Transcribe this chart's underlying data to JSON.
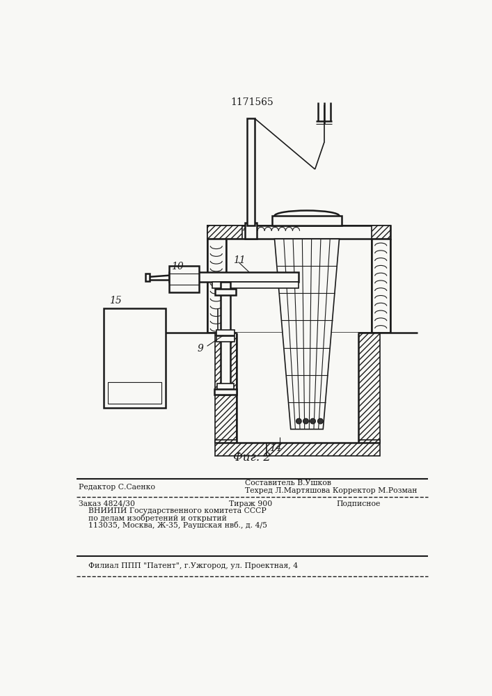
{
  "patent_number": "1171565",
  "fig_label": "Фиг. 2",
  "background_color": "#f8f8f5",
  "line_color": "#1a1a1a",
  "footer": {
    "editor_label": "Редактор С.Саенко",
    "composer_line1": "Составитель В.Ушков",
    "composer_line2": "Техред Л.Мартяшова Корректор М.Розман",
    "order": "Заказ 4824/30",
    "tirazh": "Тираж 900",
    "podpisnoe": "Подписное",
    "vniip1": "ВНИИПИ Государственного комитета СССР",
    "vniip2": "по делам изобретений и открытий",
    "vniip3": "113035, Москва, Ж-35, Раушская нвб., д. 4/5",
    "filial": "Филиал ППП \"Патент\", г.Ужгород, ул. Проектная, 4"
  }
}
